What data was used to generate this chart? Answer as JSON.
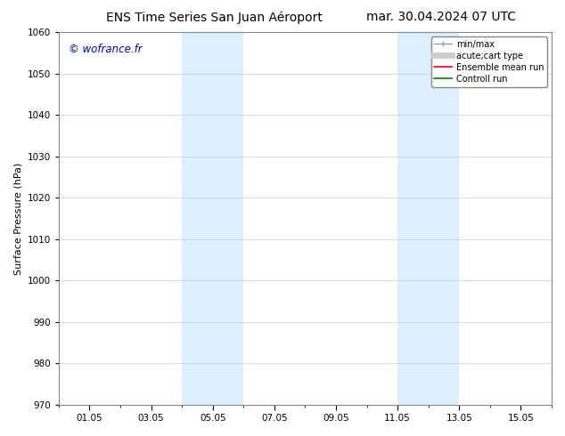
{
  "title_left": "ENS Time Series San Juan Aéroport",
  "title_right": "mar. 30.04.2024 07 UTC",
  "ylabel": "Surface Pressure (hPa)",
  "ylim": [
    970,
    1060
  ],
  "yticks": [
    970,
    980,
    990,
    1000,
    1010,
    1020,
    1030,
    1040,
    1050,
    1060
  ],
  "xtick_labels": [
    "01.05",
    "03.05",
    "05.05",
    "07.05",
    "09.05",
    "11.05",
    "13.05",
    "15.05"
  ],
  "xtick_positions": [
    1,
    3,
    5,
    7,
    9,
    11,
    13,
    15
  ],
  "xlim": [
    0,
    16
  ],
  "shaded_regions": [
    {
      "start": 4.0,
      "end": 6.0,
      "color": "#ddeeff"
    },
    {
      "start": 11.0,
      "end": 13.0,
      "color": "#ddeeff"
    }
  ],
  "minor_xtick_positions": [
    0,
    1,
    2,
    3,
    4,
    5,
    6,
    7,
    8,
    9,
    10,
    11,
    12,
    13,
    14,
    15,
    16
  ],
  "watermark": "© wofrance.fr",
  "watermark_color": "#0000cc",
  "background_color": "#ffffff",
  "grid_color": "#cccccc",
  "spine_color": "#888888",
  "title_fontsize": 10,
  "label_fontsize": 8,
  "tick_fontsize": 7.5,
  "legend_fontsize": 7,
  "watermark_fontsize": 8.5
}
